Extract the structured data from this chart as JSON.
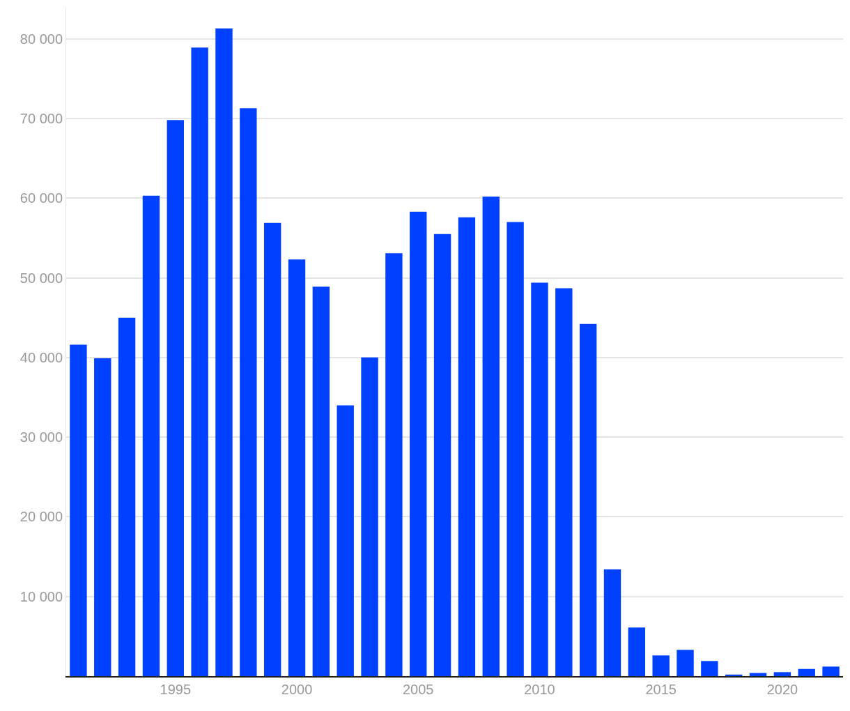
{
  "chart_data": {
    "type": "bar",
    "x": [
      1991,
      1992,
      1993,
      1994,
      1995,
      1996,
      1997,
      1998,
      1999,
      2000,
      2001,
      2002,
      2003,
      2004,
      2005,
      2006,
      2007,
      2008,
      2009,
      2010,
      2011,
      2012,
      2013,
      2014,
      2015,
      2016,
      2017,
      2018,
      2019,
      2020,
      2021,
      2022
    ],
    "values": [
      41600,
      39900,
      45000,
      60300,
      69800,
      78900,
      81300,
      71300,
      56900,
      52300,
      48900,
      34000,
      40000,
      53100,
      58300,
      55500,
      57600,
      60200,
      57000,
      49400,
      48700,
      44200,
      13400,
      6100,
      2600,
      3300,
      1900,
      200,
      400,
      500,
      900,
      1200
    ],
    "color": "#0040ff",
    "xlim": [
      1990.5,
      2022.5
    ],
    "xticks": [
      1995,
      2000,
      2005,
      2010,
      2015,
      2020
    ],
    "ylim": [
      0,
      84000
    ],
    "yticks": [
      {
        "value": 10000,
        "label": "10 000"
      },
      {
        "value": 20000,
        "label": "20 000"
      },
      {
        "value": 30000,
        "label": "30 000"
      },
      {
        "value": 40000,
        "label": "40 000"
      },
      {
        "value": 50000,
        "label": "50 000"
      },
      {
        "value": 60000,
        "label": "60 000"
      },
      {
        "value": 70000,
        "label": "70 000"
      },
      {
        "value": 80000,
        "label": "80 000"
      }
    ],
    "grid": "y",
    "legend": false
  }
}
